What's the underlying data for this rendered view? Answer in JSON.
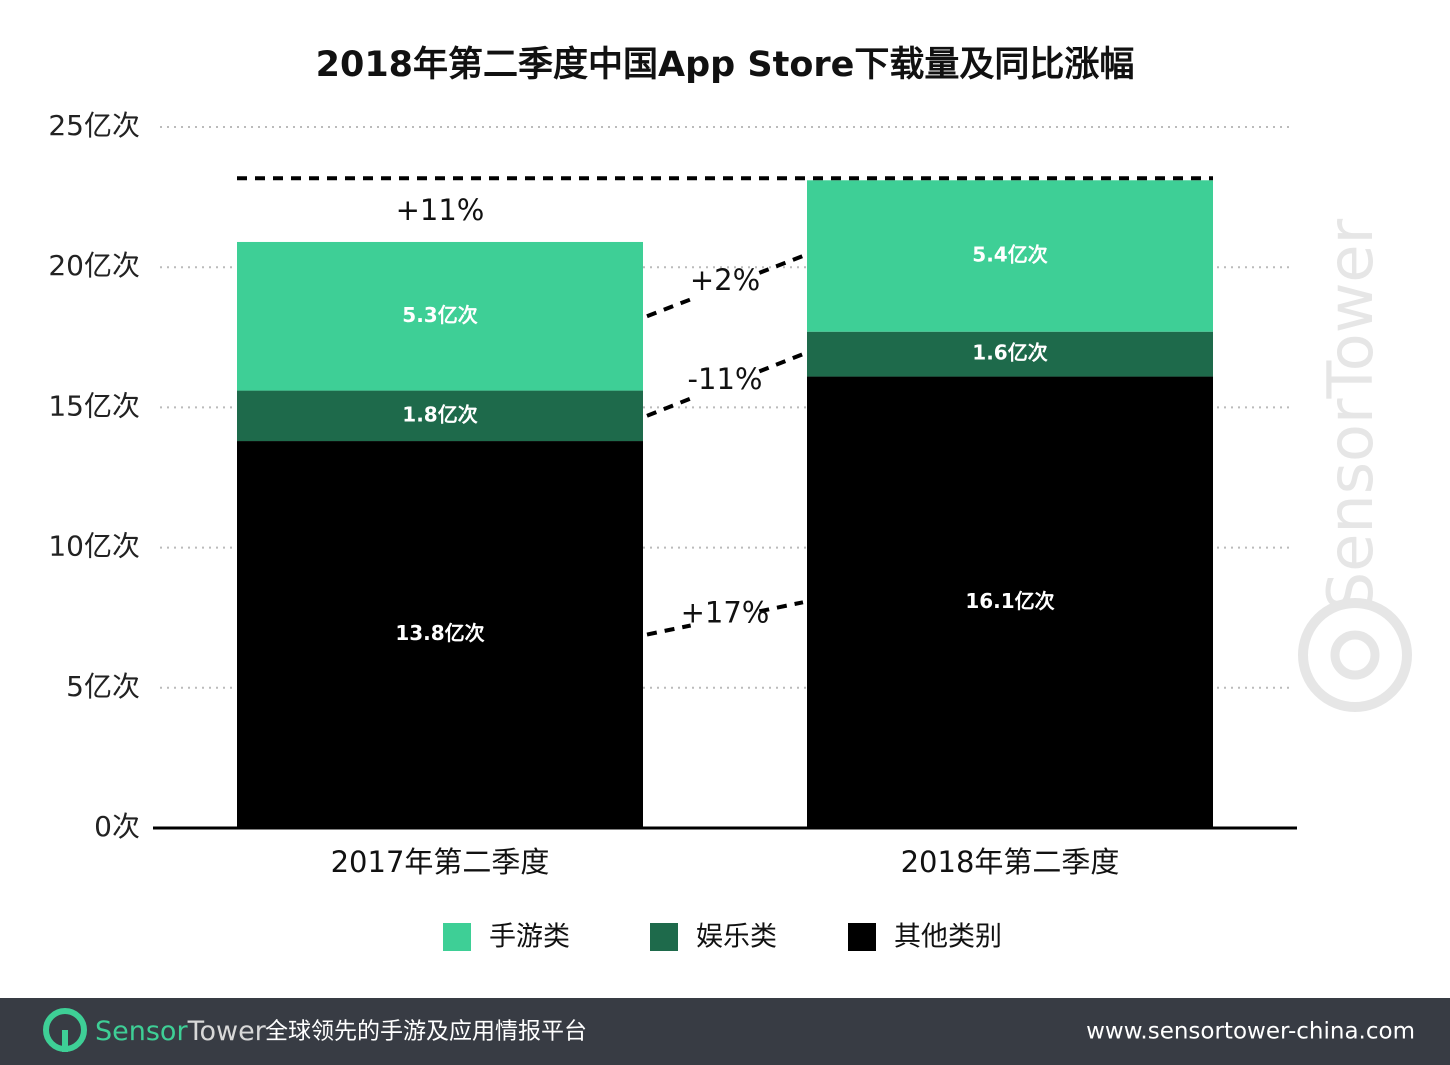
{
  "chart_data": {
    "type": "stacked-bar",
    "title": "2018年第二季度中国App Store下载量及同比涨幅",
    "categories": [
      "2017年第二季度",
      "2018年第二季度"
    ],
    "series": [
      {
        "name": "手游类",
        "color": "#3ecf96",
        "values": [
          5.3,
          5.4
        ],
        "value_labels": [
          "5.3亿次",
          "5.4亿次"
        ],
        "change_label": "+2%"
      },
      {
        "name": "娱乐类",
        "color": "#1e6a4b",
        "values": [
          1.8,
          1.6
        ],
        "value_labels": [
          "1.8亿次",
          "1.6亿次"
        ],
        "change_label": "-11%"
      },
      {
        "name": "其他类别",
        "color": "#000000",
        "values": [
          13.8,
          16.1
        ],
        "value_labels": [
          "13.8亿次",
          "16.1亿次"
        ],
        "change_label": "+17%"
      }
    ],
    "total_change_label": "+11%",
    "ylim": [
      0,
      25
    ],
    "yticks": [
      {
        "value": 0,
        "label": "0次"
      },
      {
        "value": 5,
        "label": "5亿次"
      },
      {
        "value": 10,
        "label": "10亿次"
      },
      {
        "value": 15,
        "label": "15亿次"
      },
      {
        "value": 20,
        "label": "20亿次"
      },
      {
        "value": 25,
        "label": "25亿次"
      }
    ],
    "grid": true
  },
  "watermark": "SensorTower",
  "footer": {
    "brand_first": "Sensor",
    "brand_second": "Tower",
    "slogan": "全球领先的手游及应用情报平台",
    "url": "www.sensortower-china.com"
  }
}
